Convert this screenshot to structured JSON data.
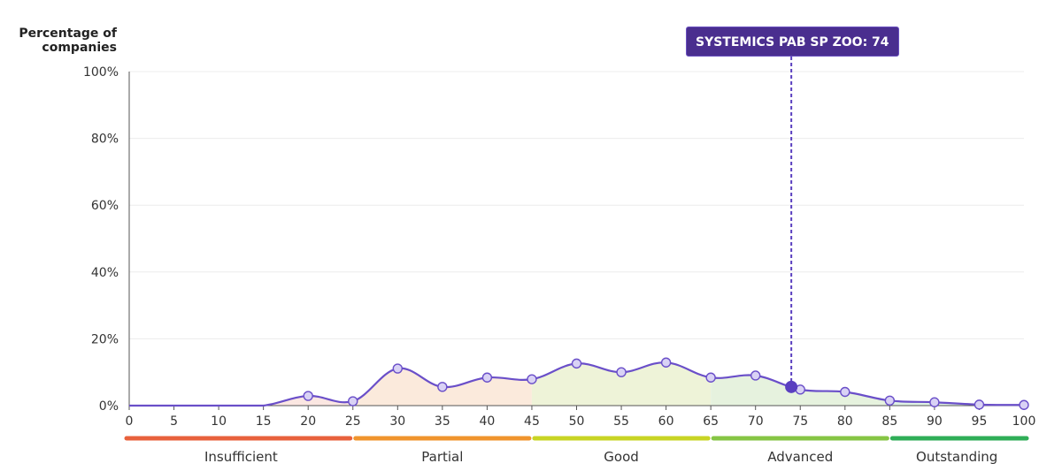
{
  "chart_data": {
    "type": "area",
    "ylabel": "Percentage of companies",
    "ylim": [
      0,
      100
    ],
    "y_ticks": [
      "0%",
      "20%",
      "40%",
      "60%",
      "80%",
      "100%"
    ],
    "x_ticks": [
      0,
      5,
      10,
      15,
      20,
      25,
      30,
      35,
      40,
      45,
      50,
      55,
      60,
      65,
      70,
      75,
      80,
      85,
      90,
      95,
      100
    ],
    "xlim": [
      0,
      100
    ],
    "grid": true,
    "series": [
      {
        "color": "#6a4fc9",
        "x": [
          0,
          5,
          10,
          15,
          20,
          25,
          30,
          35,
          40,
          45,
          50,
          55,
          60,
          65,
          70,
          75,
          80,
          85,
          90,
          95,
          100
        ],
        "y": [
          0,
          0,
          0,
          0,
          2.9,
          1.3,
          11.1,
          5.6,
          8.4,
          7.9,
          12.6,
          10.0,
          12.9,
          8.4,
          9.0,
          4.8,
          4.1,
          1.5,
          1.0,
          0.3,
          0.2
        ],
        "marked_x": [
          20,
          25,
          30,
          35,
          40,
          45,
          50,
          55,
          60,
          65,
          70,
          75,
          80,
          85,
          90,
          95,
          100
        ]
      }
    ],
    "highlight": {
      "label": "SYSTEMICS PAB SP ZOO: 74",
      "x": 74,
      "y": 5.6,
      "color": "#4a2e8f"
    },
    "bands": [
      {
        "label": "Insufficient",
        "from": 0,
        "to": 25,
        "color": "#e8613c",
        "fill": "#fbe7e2"
      },
      {
        "label": "Partial",
        "from": 25,
        "to": 45,
        "color": "#f0942d",
        "fill": "#fbeadc"
      },
      {
        "label": "Good",
        "from": 45,
        "to": 65,
        "color": "#c8d424",
        "fill": "#eef3d8"
      },
      {
        "label": "Advanced",
        "from": 65,
        "to": 85,
        "color": "#86c544",
        "fill": "#e6f2de"
      },
      {
        "label": "Outstanding",
        "from": 85,
        "to": 100,
        "color": "#2fae57",
        "fill": "#dff2e4"
      }
    ]
  }
}
